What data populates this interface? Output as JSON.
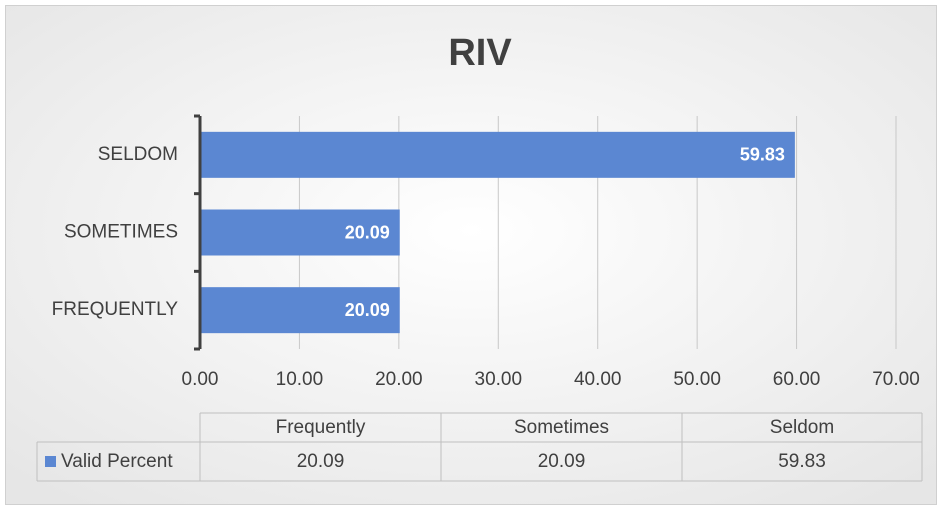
{
  "chart_data": {
    "type": "bar",
    "orientation": "horizontal",
    "title": "RIV",
    "categories": [
      "FREQUENTLY",
      "SOMETIMES",
      "SELDOM"
    ],
    "series": [
      {
        "name": "Valid Percent",
        "color": "#5b87d2",
        "values": [
          20.09,
          20.09,
          59.83
        ]
      }
    ],
    "xlim": [
      0,
      70
    ],
    "xticks": [
      {
        "value": 0,
        "label": "0.00"
      },
      {
        "value": 10,
        "label": "10.00"
      },
      {
        "value": 20,
        "label": "20.00"
      },
      {
        "value": 30,
        "label": "30.00"
      },
      {
        "value": 40,
        "label": "40.00"
      },
      {
        "value": 50,
        "label": "50.00"
      },
      {
        "value": 60,
        "label": "60.00"
      },
      {
        "value": 70,
        "label": "70.00"
      }
    ],
    "grid": true,
    "data_table": {
      "columns": [
        "Frequently",
        "Sometimes",
        "Seldom"
      ]
    }
  }
}
